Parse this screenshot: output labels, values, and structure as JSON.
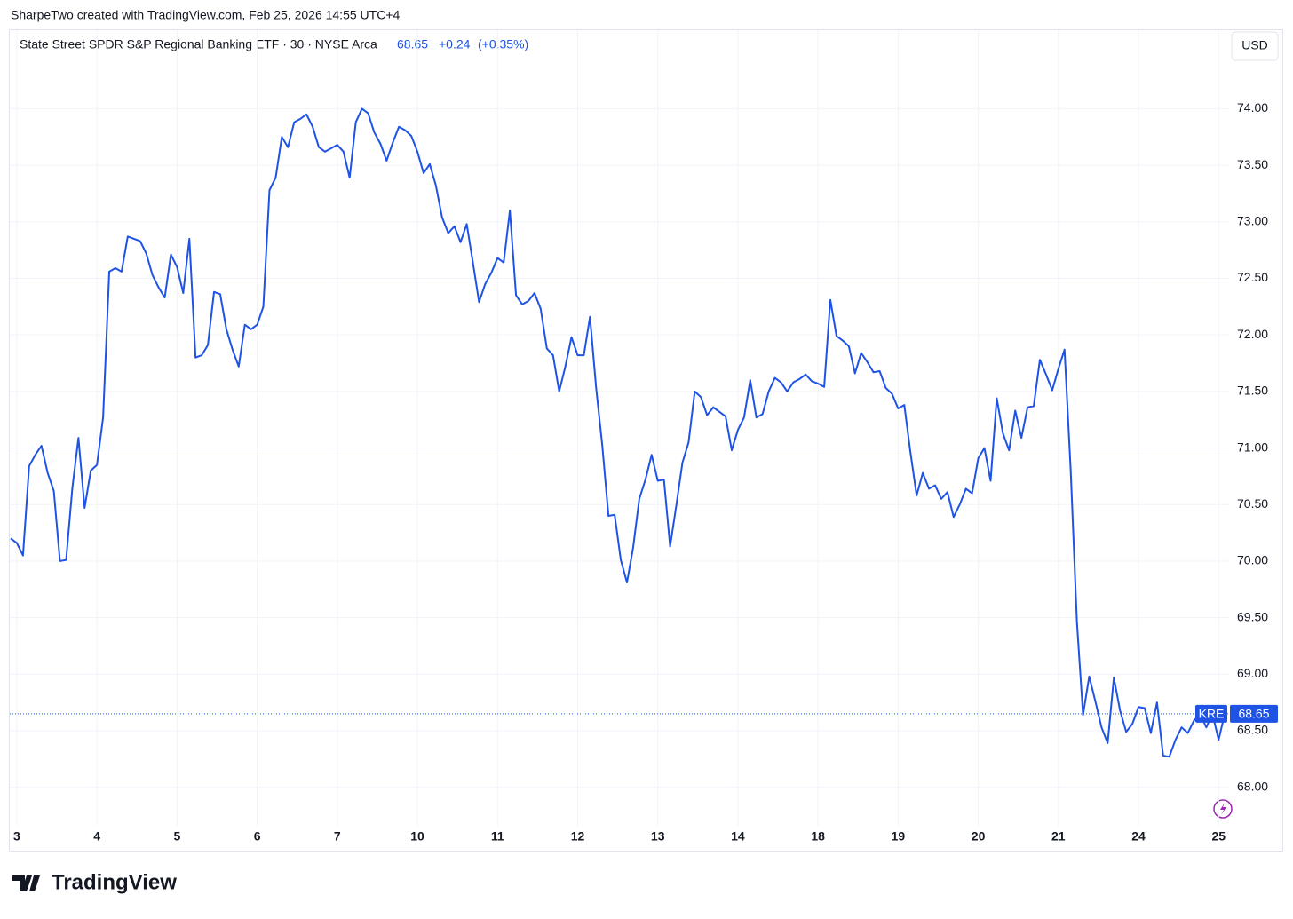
{
  "header": {
    "credit": "SharpeTwo created with TradingView.com, Feb 25, 2026 14:55 UTC+4",
    "currency": "USD",
    "brand": "TradingView"
  },
  "chart_data": {
    "type": "line",
    "title": "State Street SPDR S&P Regional Banking ETF · 30 · NYSE Arca",
    "symbol": "KRE",
    "last_value": 68.65,
    "change": "+0.24",
    "change_pct": "(+0.35%)",
    "color": "#1e53e5",
    "grid": true,
    "categories": [
      null,
      "3",
      null,
      null,
      null,
      null,
      null,
      null,
      null,
      null,
      null,
      null,
      null,
      null,
      "4",
      null,
      null,
      null,
      null,
      null,
      null,
      null,
      null,
      null,
      null,
      null,
      null,
      "5",
      null,
      null,
      null,
      null,
      null,
      null,
      null,
      null,
      null,
      null,
      null,
      null,
      "6",
      null,
      null,
      null,
      null,
      null,
      null,
      null,
      null,
      null,
      null,
      null,
      null,
      "7",
      null,
      null,
      null,
      null,
      null,
      null,
      null,
      null,
      null,
      null,
      null,
      null,
      "10",
      null,
      null,
      null,
      null,
      null,
      null,
      null,
      null,
      null,
      null,
      null,
      null,
      "11",
      null,
      null,
      null,
      null,
      null,
      null,
      null,
      null,
      null,
      null,
      null,
      null,
      "12",
      null,
      null,
      null,
      null,
      null,
      null,
      null,
      null,
      null,
      null,
      null,
      null,
      "13",
      null,
      null,
      null,
      null,
      null,
      null,
      null,
      null,
      null,
      null,
      null,
      null,
      "14",
      null,
      null,
      null,
      null,
      null,
      null,
      null,
      null,
      null,
      null,
      null,
      null,
      "18",
      null,
      null,
      null,
      null,
      null,
      null,
      null,
      null,
      null,
      null,
      null,
      null,
      "19",
      null,
      null,
      null,
      null,
      null,
      null,
      null,
      null,
      null,
      null,
      null,
      null,
      "20",
      null,
      null,
      null,
      null,
      null,
      null,
      null,
      null,
      null,
      null,
      null,
      null,
      "21",
      null,
      null,
      null,
      null,
      null,
      null,
      null,
      null,
      null,
      null,
      null,
      null,
      "24",
      null,
      null,
      null,
      null,
      null,
      null,
      null,
      null,
      null,
      null,
      null,
      null,
      "25",
      null
    ],
    "values": [
      70.2,
      70.16,
      70.05,
      70.84,
      70.94,
      71.02,
      70.78,
      70.62,
      70.0,
      70.01,
      70.64,
      71.09,
      70.47,
      70.8,
      70.85,
      71.27,
      72.56,
      72.59,
      72.56,
      72.87,
      72.85,
      72.83,
      72.72,
      72.53,
      72.42,
      72.33,
      72.71,
      72.6,
      72.37,
      72.85,
      71.8,
      71.82,
      71.91,
      72.38,
      72.36,
      72.05,
      71.87,
      71.72,
      72.09,
      72.05,
      72.09,
      72.25,
      73.28,
      73.39,
      73.75,
      73.66,
      73.88,
      73.91,
      73.95,
      73.84,
      73.66,
      73.62,
      73.65,
      73.68,
      73.62,
      73.39,
      73.88,
      74.0,
      73.96,
      73.79,
      73.69,
      73.54,
      73.7,
      73.84,
      73.81,
      73.76,
      73.62,
      73.43,
      73.51,
      73.32,
      73.04,
      72.9,
      72.96,
      72.82,
      72.98,
      72.64,
      72.29,
      72.45,
      72.55,
      72.68,
      72.64,
      73.1,
      72.35,
      72.27,
      72.3,
      72.37,
      72.23,
      71.88,
      71.82,
      71.5,
      71.72,
      71.98,
      71.82,
      71.82,
      72.16,
      71.53,
      71.02,
      70.4,
      70.41,
      70.01,
      69.81,
      70.12,
      70.55,
      70.72,
      70.94,
      70.71,
      70.72,
      70.13,
      70.49,
      70.87,
      71.05,
      71.5,
      71.45,
      71.29,
      71.36,
      71.32,
      71.28,
      70.98,
      71.16,
      71.27,
      71.6,
      71.27,
      71.3,
      71.5,
      71.62,
      71.58,
      71.5,
      71.58,
      71.61,
      71.65,
      71.59,
      71.57,
      71.54,
      72.31,
      71.99,
      71.95,
      71.9,
      71.66,
      71.84,
      71.76,
      71.67,
      71.68,
      71.53,
      71.48,
      71.35,
      71.38,
      70.96,
      70.58,
      70.78,
      70.64,
      70.67,
      70.55,
      70.61,
      70.39,
      70.5,
      70.64,
      70.6,
      70.91,
      71.0,
      70.71,
      71.44,
      71.13,
      70.98,
      71.33,
      71.09,
      71.36,
      71.37,
      71.78,
      71.65,
      71.51,
      71.7,
      71.87,
      70.8,
      69.47,
      68.64,
      68.98,
      68.76,
      68.53,
      68.39,
      68.97,
      68.68,
      68.49,
      68.56,
      68.71,
      68.7,
      68.48,
      68.75,
      68.28,
      68.27,
      68.42,
      68.53,
      68.48,
      68.59,
      68.65,
      68.53,
      68.65,
      68.42,
      68.65
    ],
    "ylim": [
      67.66,
      74.49
    ],
    "yticks": [
      {
        "value": 68,
        "label": "68.00"
      },
      {
        "value": 68.5,
        "label": "68.50"
      },
      {
        "value": 69,
        "label": "69.00"
      },
      {
        "value": 69.5,
        "label": "69.50"
      },
      {
        "value": 70,
        "label": "70.00"
      },
      {
        "value": 70.5,
        "label": "70.50"
      },
      {
        "value": 71,
        "label": "71.00"
      },
      {
        "value": 71.5,
        "label": "71.50"
      },
      {
        "value": 72,
        "label": "72.00"
      },
      {
        "value": 72.5,
        "label": "72.50"
      },
      {
        "value": 73,
        "label": "73.00"
      },
      {
        "value": 73.5,
        "label": "73.50"
      },
      {
        "value": 74,
        "label": "74.00"
      }
    ]
  }
}
